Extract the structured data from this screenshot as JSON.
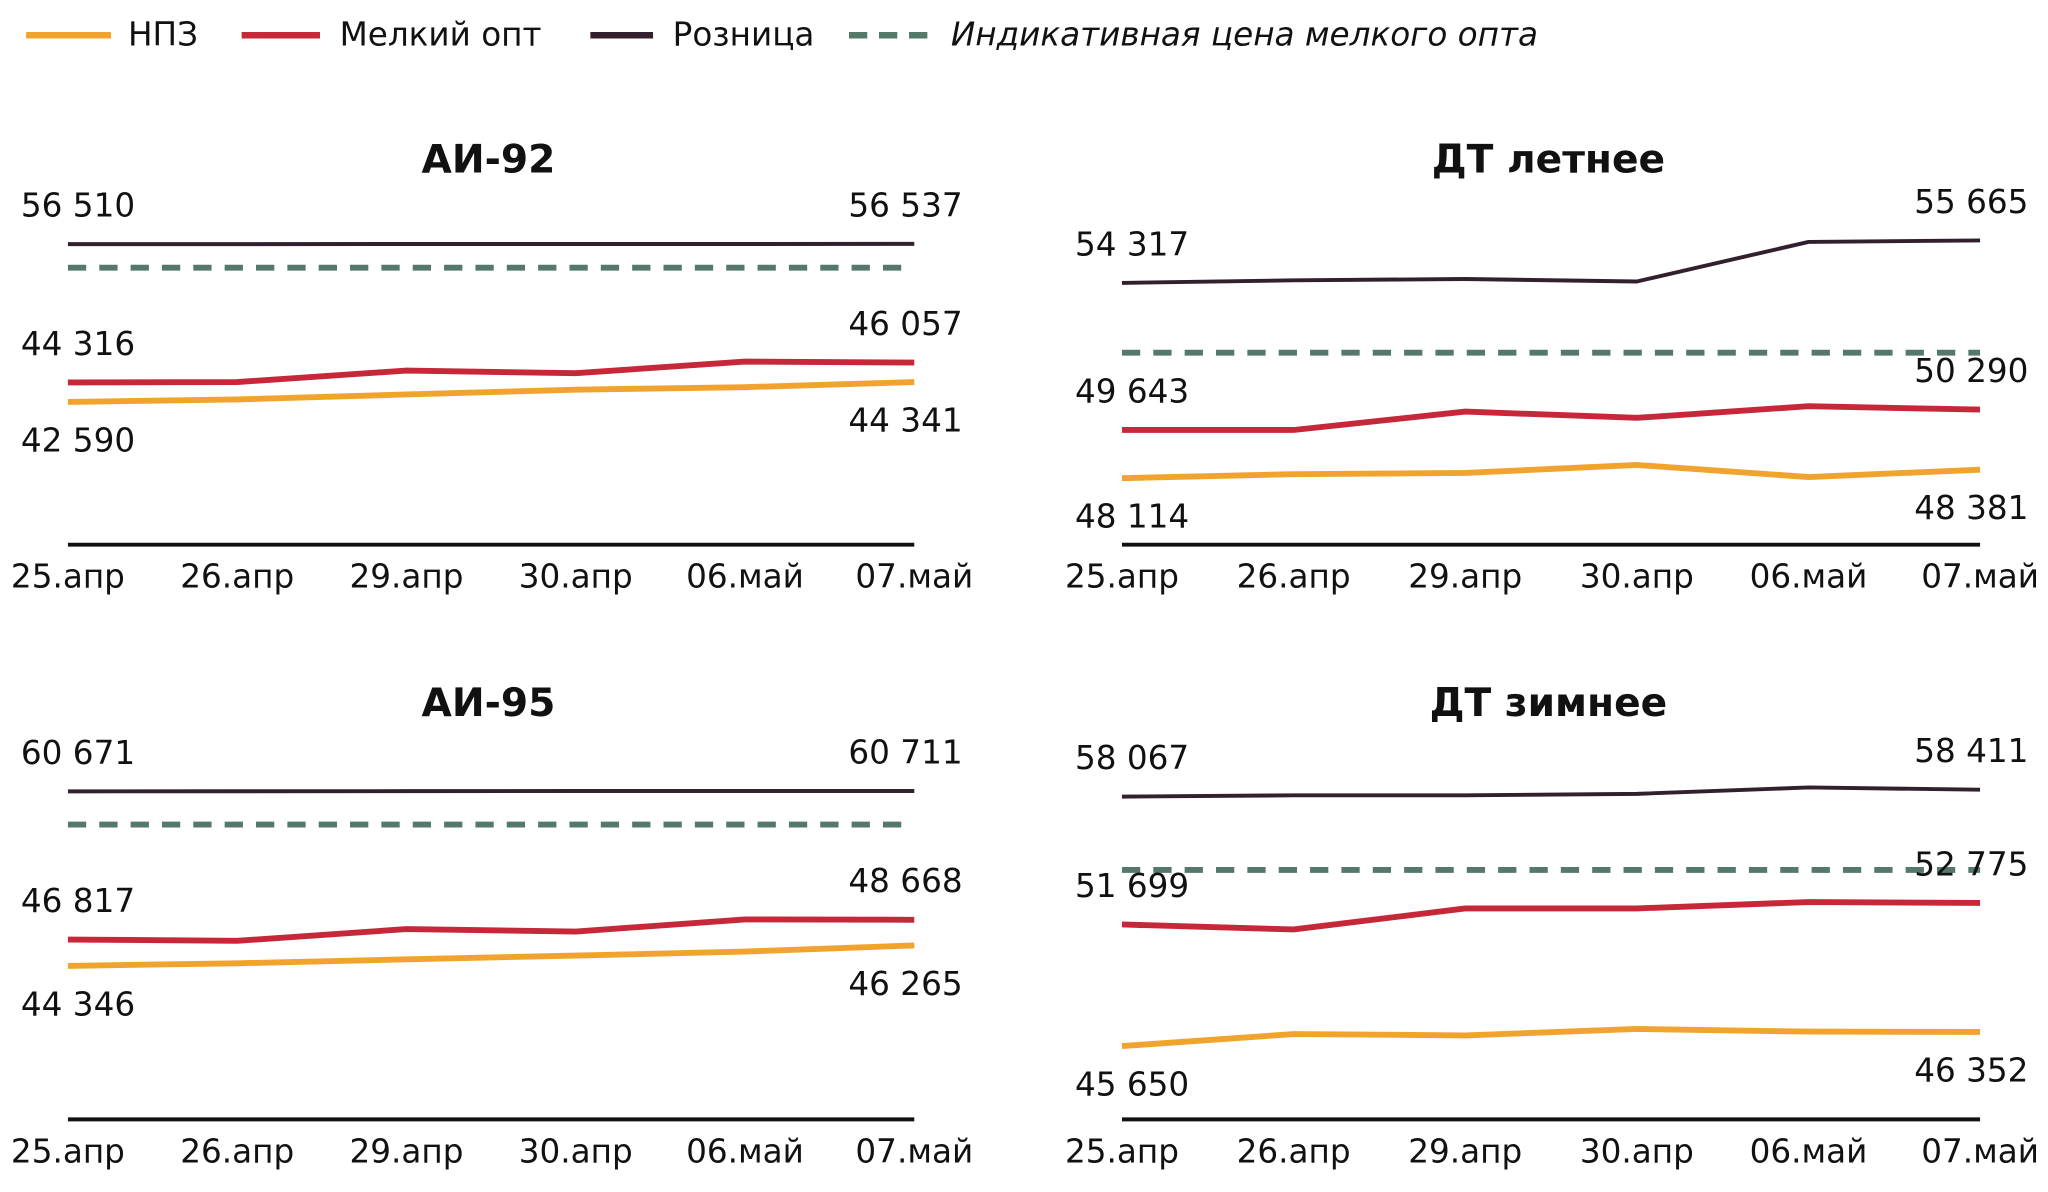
{
  "chart_data": [
    {
      "type": "line",
      "title": "АИ-92",
      "categories": [
        "25.апр",
        "26.апр",
        "29.апр",
        "30.апр",
        "06.май",
        "07.май"
      ],
      "ylim": [
        30000,
        58000
      ],
      "series": [
        {
          "name": "НПЗ",
          "color": "#f0a42e",
          "values": [
            42590,
            42810,
            43250,
            43680,
            43900,
            44341
          ],
          "value_labels": [
            "42 590",
            null,
            null,
            null,
            null,
            "44 341"
          ]
        },
        {
          "name": "Мелкий опт",
          "color": "#c6283a",
          "values": [
            44316,
            44340,
            45360,
            45130,
            46150,
            46057
          ],
          "value_labels": [
            "44 316",
            null,
            null,
            null,
            null,
            "46 057"
          ]
        },
        {
          "name": "Розница",
          "color": "#33202f",
          "values": [
            56510,
            56515,
            56520,
            56525,
            56530,
            56537
          ],
          "value_labels": [
            "56 510",
            null,
            null,
            null,
            null,
            "56 537"
          ]
        },
        {
          "name": "Индикативная цена мелкого опта",
          "color": "#54786a",
          "dashed": true,
          "values": [
            54436,
            54436,
            54436,
            54436,
            54436,
            54436
          ]
        }
      ]
    },
    {
      "type": "line",
      "title": "ДТ летнее",
      "categories": [
        "25.апр",
        "26.апр",
        "29.апр",
        "30.апр",
        "06.май",
        "07.май"
      ],
      "ylim": [
        46000,
        56000
      ],
      "series": [
        {
          "name": "НПЗ",
          "color": "#f0a42e",
          "values": [
            48114,
            48240,
            48280,
            48530,
            48150,
            48381
          ],
          "value_labels": [
            "48 114",
            null,
            null,
            null,
            null,
            "48 381"
          ]
        },
        {
          "name": "Мелкий опт",
          "color": "#c6283a",
          "values": [
            49643,
            49643,
            50230,
            50030,
            50400,
            50290
          ],
          "value_labels": [
            "49 643",
            null,
            null,
            null,
            null,
            "50 290"
          ]
        },
        {
          "name": "Розница",
          "color": "#33202f",
          "values": [
            54317,
            54400,
            54440,
            54360,
            55620,
            55665
          ],
          "value_labels": [
            "54 317",
            null,
            null,
            null,
            null,
            "55 665"
          ]
        },
        {
          "name": "Индикативная цена мелкого опта",
          "color": "#54786a",
          "dashed": true,
          "values": [
            52100,
            52100,
            52100,
            52100,
            52100,
            52100
          ]
        }
      ]
    },
    {
      "type": "line",
      "title": "АИ-95",
      "categories": [
        "25.апр",
        "26.апр",
        "29.апр",
        "30.апр",
        "06.май",
        "07.май"
      ],
      "ylim": [
        30000,
        62000
      ],
      "series": [
        {
          "name": "НПЗ",
          "color": "#f0a42e",
          "values": [
            44346,
            44590,
            44960,
            45320,
            45700,
            46265
          ],
          "value_labels": [
            "44 346",
            null,
            null,
            null,
            null,
            "46 265"
          ]
        },
        {
          "name": "Мелкий опт",
          "color": "#c6283a",
          "values": [
            46817,
            46700,
            47800,
            47560,
            48700,
            48668
          ],
          "value_labels": [
            "46 817",
            null,
            null,
            null,
            null,
            "48 668"
          ]
        },
        {
          "name": "Розница",
          "color": "#33202f",
          "values": [
            60671,
            60680,
            60690,
            60700,
            60705,
            60711
          ],
          "value_labels": [
            "60 671",
            null,
            null,
            null,
            null,
            "60 711"
          ]
        },
        {
          "name": "Индикативная цена мелкого опта",
          "color": "#54786a",
          "dashed": true,
          "values": [
            57570,
            57570,
            57570,
            57570,
            57570,
            57570
          ]
        }
      ]
    },
    {
      "type": "line",
      "title": "ДТ зимнее",
      "categories": [
        "25.апр",
        "26.апр",
        "29.апр",
        "30.апр",
        "06.май",
        "07.май"
      ],
      "ylim": [
        42000,
        59000
      ],
      "series": [
        {
          "name": "НПЗ",
          "color": "#f0a42e",
          "values": [
            45650,
            46245,
            46180,
            46500,
            46370,
            46352
          ],
          "value_labels": [
            "45 650",
            null,
            null,
            null,
            null,
            "46 352"
          ]
        },
        {
          "name": "Мелкий опт",
          "color": "#c6283a",
          "values": [
            51699,
            51450,
            52500,
            52500,
            52820,
            52775
          ],
          "value_labels": [
            "51 699",
            null,
            null,
            null,
            null,
            "52 775"
          ]
        },
        {
          "name": "Розница",
          "color": "#33202f",
          "values": [
            58067,
            58130,
            58130,
            58200,
            58520,
            58411
          ],
          "value_labels": [
            "58 067",
            null,
            null,
            null,
            null,
            "58 411"
          ]
        },
        {
          "name": "Индикативная цена мелкого опта",
          "color": "#54786a",
          "dashed": true,
          "values": [
            54415,
            54415,
            54415,
            54415,
            54415,
            54415
          ]
        }
      ]
    }
  ]
}
